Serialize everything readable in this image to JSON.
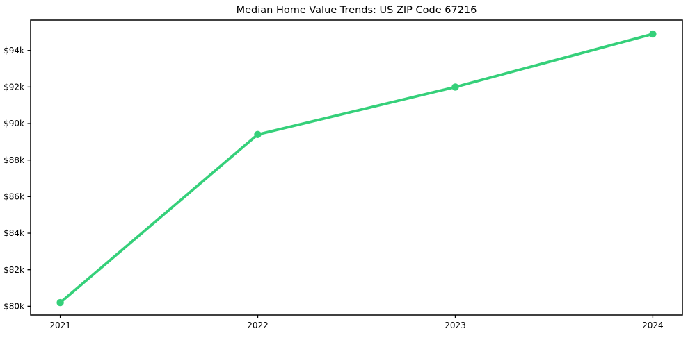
{
  "chart": {
    "title": "Median Home Value Trends: US ZIP Code 67216"
  },
  "chart_data": {
    "type": "line",
    "title": "Median Home Value Trends: US ZIP Code 67216",
    "x": [
      2021,
      2022,
      2023,
      2024
    ],
    "y": [
      80200,
      89400,
      92000,
      94900
    ],
    "x_tick_labels": [
      "2021",
      "2022",
      "2023",
      "2024"
    ],
    "y_ticks": [
      80000,
      82000,
      84000,
      86000,
      88000,
      90000,
      92000,
      94000
    ],
    "y_tick_labels": [
      "$80k",
      "$82k",
      "$84k",
      "$86k",
      "$88k",
      "$90k",
      "$92k",
      "$94k"
    ],
    "xlim": [
      2020.85,
      2024.15
    ],
    "ylim": [
      79520,
      95660
    ],
    "xlabel": "",
    "ylabel": "",
    "grid": false,
    "line_color": "#35d07a",
    "axis_color": "#000000",
    "background_color": "#ffffff",
    "marker": "circle"
  }
}
